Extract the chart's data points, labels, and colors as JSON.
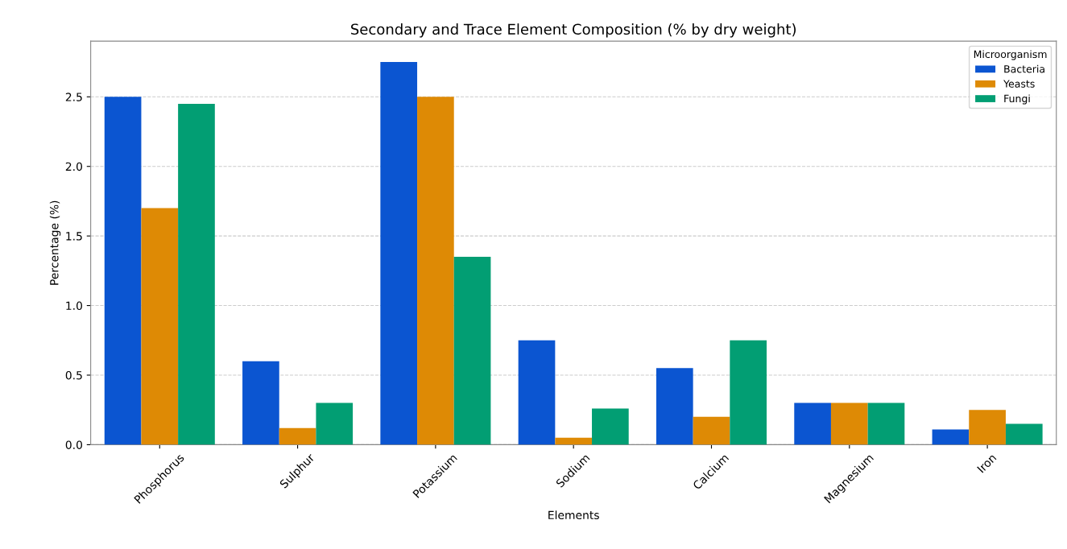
{
  "chart_data": {
    "type": "bar",
    "title": "Secondary and Trace Element Composition (% by dry weight)",
    "xlabel": "Elements",
    "ylabel": "Percentage (%)",
    "categories": [
      "Phosphorus",
      "Sulphur",
      "Potassium",
      "Sodium",
      "Calcium",
      "Magnesium",
      "Iron"
    ],
    "series": [
      {
        "name": "Bacteria",
        "color": "#0b55d1",
        "values": [
          2.5,
          0.6,
          2.75,
          0.75,
          0.55,
          0.3,
          0.11
        ]
      },
      {
        "name": "Yeasts",
        "color": "#de8a05",
        "values": [
          1.7,
          0.12,
          2.5,
          0.05,
          0.2,
          0.3,
          0.25
        ]
      },
      {
        "name": "Fungi",
        "color": "#029e73",
        "values": [
          2.45,
          0.3,
          1.35,
          0.26,
          0.75,
          0.3,
          0.15
        ]
      }
    ],
    "legend_title": "Microorganism",
    "legend": "top right",
    "grid": "y",
    "ylim": [
      0,
      2.9
    ],
    "yticks": [
      {
        "value": 0,
        "label": "0.0"
      },
      {
        "value": 0.5,
        "label": "0.5"
      },
      {
        "value": 1,
        "label": "1.0"
      },
      {
        "value": 1.5,
        "label": "1.5"
      },
      {
        "value": 2,
        "label": "2.0"
      },
      {
        "value": 2.5,
        "label": "2.5"
      }
    ]
  }
}
